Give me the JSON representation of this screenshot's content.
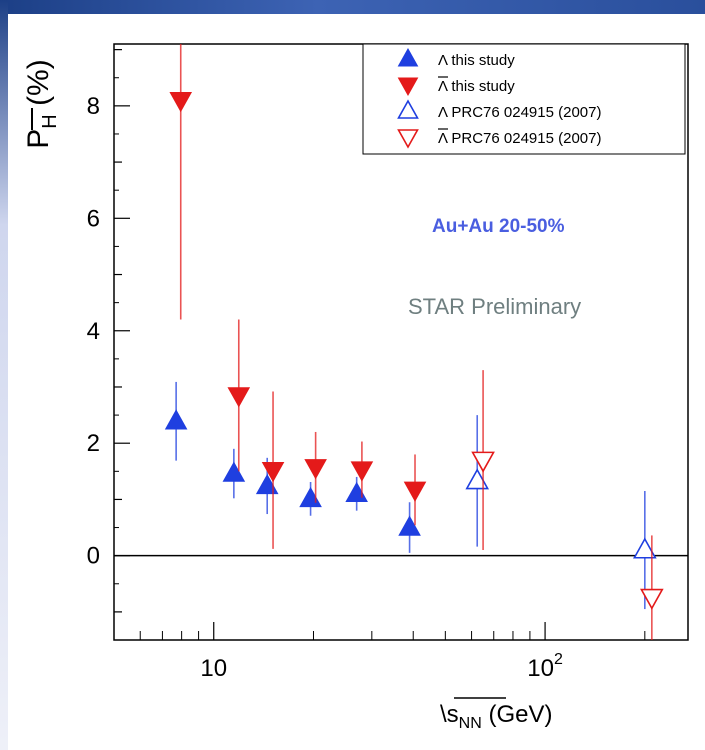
{
  "chart_data": {
    "type": "scatter",
    "x_scale": "log",
    "xlim": [
      5,
      270
    ],
    "ylim": [
      -1.5,
      9.1
    ],
    "x_ticks": [
      {
        "value": 10,
        "base": "10",
        "exp": ""
      },
      {
        "value": 100,
        "base": "10",
        "exp": "2"
      }
    ],
    "y_ticks": [
      0,
      2,
      4,
      6,
      8
    ],
    "xlabel": {
      "root": "\\",
      "main": "s",
      "sub": "NN",
      "unit": " (GeV)"
    },
    "ylabel": {
      "main": "P",
      "sub": "H",
      "unit": " (%)"
    },
    "zero_line": true,
    "legend_position": "top-right",
    "annotations": [
      "Au+Au 20-50%",
      "STAR Preliminary"
    ],
    "series": [
      {
        "name": "Λ this study",
        "marker": "triangle-up",
        "filled": true,
        "color": "#1f3fe0",
        "points": [
          {
            "x": 7.7,
            "y": 2.39,
            "err": 0.7
          },
          {
            "x": 11.5,
            "y": 1.46,
            "err": 0.44
          },
          {
            "x": 14.5,
            "y": 1.24,
            "err": 0.5
          },
          {
            "x": 19.6,
            "y": 1.01,
            "err": 0.3
          },
          {
            "x": 27,
            "y": 1.1,
            "err": 0.3
          },
          {
            "x": 39,
            "y": 0.5,
            "err": 0.45
          }
        ]
      },
      {
        "name": "Λ this study",
        "marker": "triangle-down",
        "filled": true,
        "color": "#e41a1a",
        "points": [
          {
            "x": 7.95,
            "y": 8.1,
            "err": 3.9
          },
          {
            "x": 11.9,
            "y": 2.85,
            "err": 1.35
          },
          {
            "x": 15.1,
            "y": 1.52,
            "err": 1.4
          },
          {
            "x": 20.3,
            "y": 1.57,
            "err": 0.63
          },
          {
            "x": 28,
            "y": 1.53,
            "err": 0.5
          },
          {
            "x": 40.5,
            "y": 1.17,
            "err": 0.63
          }
        ]
      },
      {
        "name": "Λ PRC76 024915 (2007)",
        "marker": "triangle-up",
        "filled": false,
        "color": "#1f3fe0",
        "points": [
          {
            "x": 62.4,
            "y": 1.33,
            "err": 1.17
          },
          {
            "x": 200,
            "y": 0.1,
            "err": 1.05
          }
        ]
      },
      {
        "name": "Λ PRC76 024915 (2007)",
        "marker": "triangle-down",
        "filled": false,
        "color": "#e41a1a",
        "points": [
          {
            "x": 65,
            "y": 1.7,
            "err": 1.6
          },
          {
            "x": 210,
            "y": -0.74,
            "err": 1.1
          }
        ]
      }
    ]
  }
}
